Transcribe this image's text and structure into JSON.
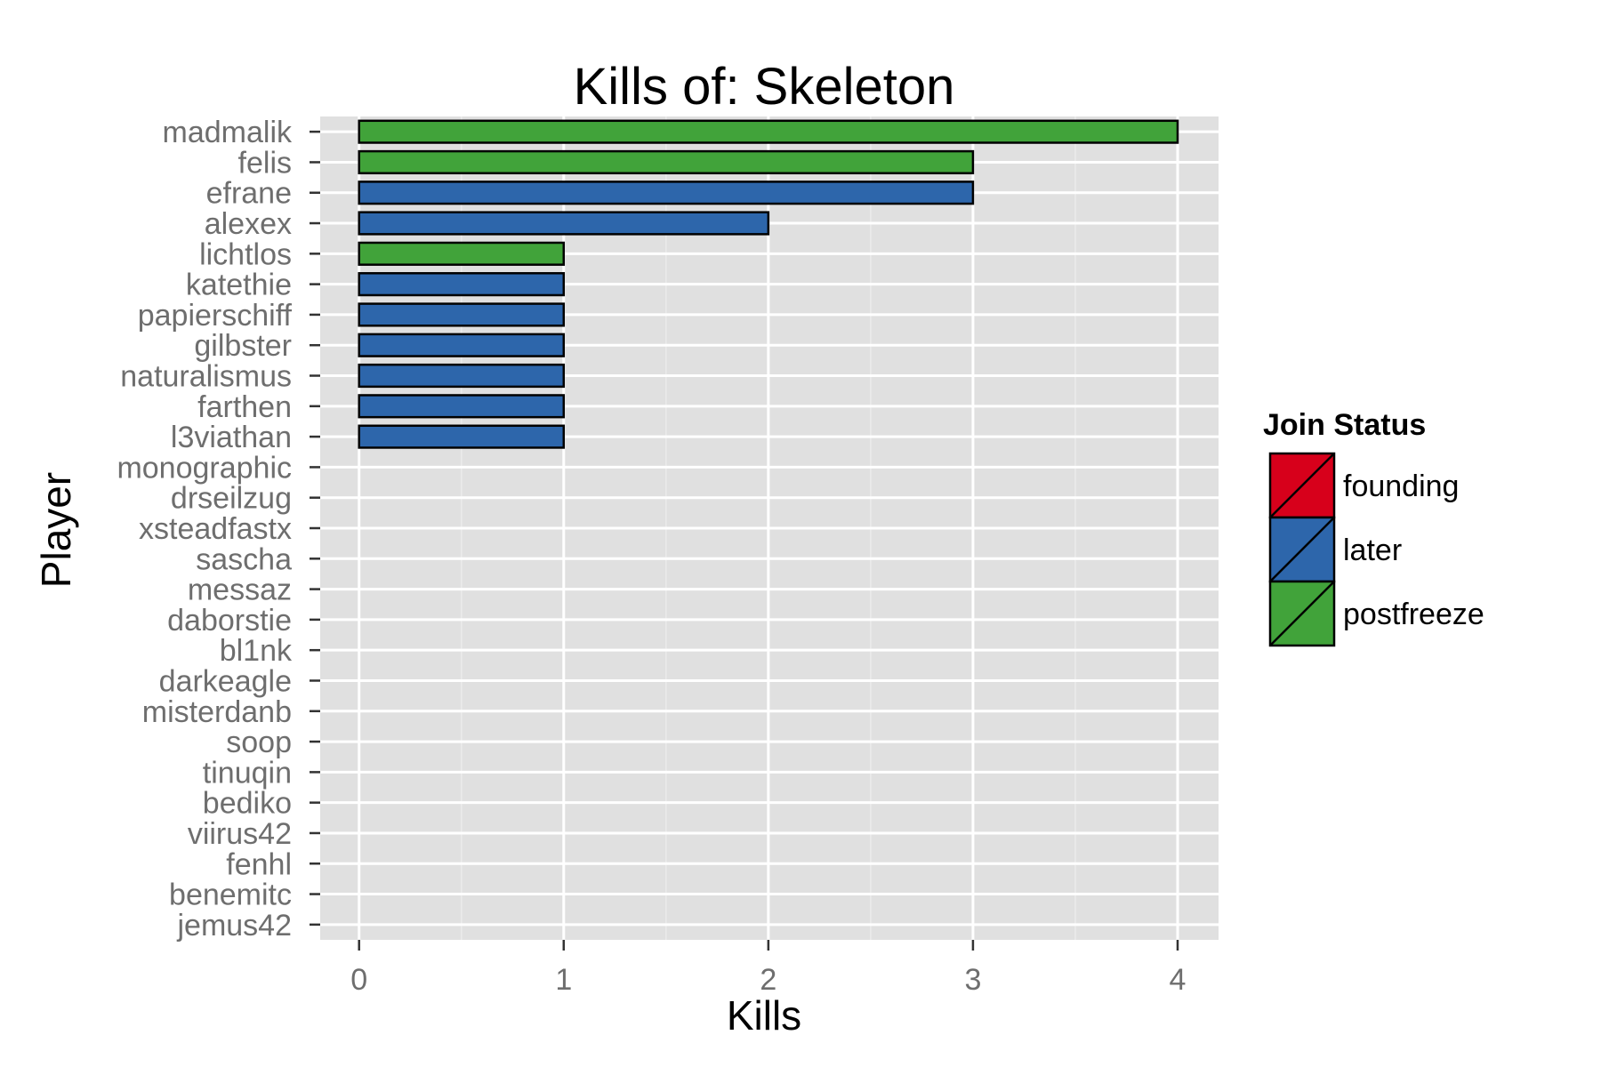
{
  "chart_data": {
    "type": "bar",
    "orientation": "horizontal",
    "title": "Kills of: Skeleton",
    "xlabel": "Kills",
    "ylabel": "Player",
    "xlim": [
      -0.19,
      4.2
    ],
    "xticks": [
      "0",
      "1",
      "2",
      "3",
      "4"
    ],
    "grid": true,
    "legend_position": "right",
    "legend_title": "Join Status",
    "groups": [
      {
        "name": "founding",
        "color": "#d7001b"
      },
      {
        "name": "later",
        "color": "#2d66ab"
      },
      {
        "name": "postfreeze",
        "color": "#41a33a"
      }
    ],
    "categories": [
      "madmalik",
      "felis",
      "efrane",
      "alexex",
      "lichtlos",
      "katethie",
      "papierschiff",
      "gilbster",
      "naturalismus",
      "farthen",
      "l3viathan",
      "monographic",
      "drseilzug",
      "xsteadfastx",
      "sascha",
      "messaz",
      "daborstie",
      "bl1nk",
      "darkeagle",
      "misterdanb",
      "soop",
      "tinuqin",
      "bediko",
      "viirus42",
      "fenhl",
      "benemitc",
      "jemus42"
    ],
    "values": [
      4,
      3,
      3,
      2,
      1,
      1,
      1,
      1,
      1,
      1,
      1,
      0,
      0,
      0,
      0,
      0,
      0,
      0,
      0,
      0,
      0,
      0,
      0,
      0,
      0,
      0,
      0
    ],
    "status": [
      "postfreeze",
      "postfreeze",
      "later",
      "later",
      "postfreeze",
      "later",
      "later",
      "later",
      "later",
      "later",
      "later",
      "later",
      "later",
      "later",
      "later",
      "later",
      "later",
      "later",
      "later",
      "later",
      "later",
      "later",
      "later",
      "later",
      "later",
      "later",
      "later"
    ]
  }
}
